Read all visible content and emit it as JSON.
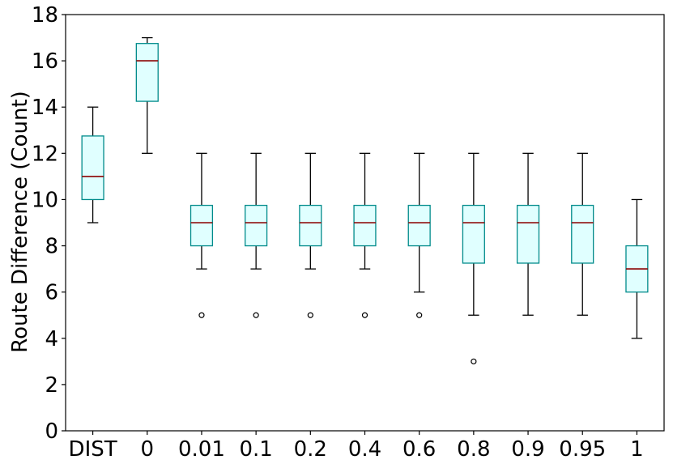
{
  "chart_data": {
    "type": "box",
    "title": "",
    "xlabel": "",
    "ylabel": "Route Difference (Count)",
    "ylim": [
      0,
      18
    ],
    "yticks": [
      "0",
      "2",
      "4",
      "6",
      "8",
      "10",
      "12",
      "14",
      "16",
      "18"
    ],
    "grid": false,
    "colors": {
      "box_fill": "#e0ffff",
      "box_edge": "#008b8b",
      "median": "#8b0000",
      "whisker": "#000000"
    },
    "categories": [
      "DIST",
      "0",
      "0.01",
      "0.1",
      "0.2",
      "0.4",
      "0.6",
      "0.8",
      "0.9",
      "0.95",
      "1"
    ],
    "boxes": [
      {
        "label": "DIST",
        "whislo": 9,
        "q1": 10,
        "med": 11,
        "q3": 12.75,
        "whishi": 14,
        "fliers": []
      },
      {
        "label": "0",
        "whislo": 12,
        "q1": 14.25,
        "med": 16,
        "q3": 16.75,
        "whishi": 17,
        "fliers": []
      },
      {
        "label": "0.01",
        "whislo": 7,
        "q1": 8,
        "med": 9,
        "q3": 9.75,
        "whishi": 12,
        "fliers": [
          5
        ]
      },
      {
        "label": "0.1",
        "whislo": 7,
        "q1": 8,
        "med": 9,
        "q3": 9.75,
        "whishi": 12,
        "fliers": [
          5
        ]
      },
      {
        "label": "0.2",
        "whislo": 7,
        "q1": 8,
        "med": 9,
        "q3": 9.75,
        "whishi": 12,
        "fliers": [
          5
        ]
      },
      {
        "label": "0.4",
        "whislo": 7,
        "q1": 8,
        "med": 9,
        "q3": 9.75,
        "whishi": 12,
        "fliers": [
          5
        ]
      },
      {
        "label": "0.6",
        "whislo": 6,
        "q1": 8,
        "med": 9,
        "q3": 9.75,
        "whishi": 12,
        "fliers": [
          5
        ]
      },
      {
        "label": "0.8",
        "whislo": 5,
        "q1": 7.25,
        "med": 9,
        "q3": 9.75,
        "whishi": 12,
        "fliers": [
          3
        ]
      },
      {
        "label": "0.9",
        "whislo": 5,
        "q1": 7.25,
        "med": 9,
        "q3": 9.75,
        "whishi": 12,
        "fliers": []
      },
      {
        "label": "0.95",
        "whislo": 5,
        "q1": 7.25,
        "med": 9,
        "q3": 9.75,
        "whishi": 12,
        "fliers": []
      },
      {
        "label": "1",
        "whislo": 4,
        "q1": 6,
        "med": 7,
        "q3": 8,
        "whishi": 10,
        "fliers": []
      }
    ]
  }
}
